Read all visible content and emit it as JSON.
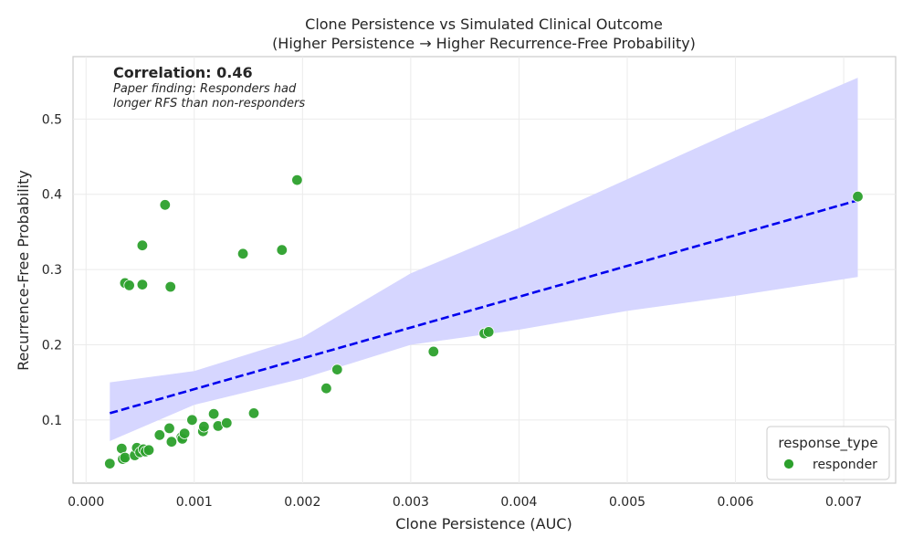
{
  "chart_data": {
    "type": "scatter",
    "title_line1": "Clone Persistence vs Simulated Clinical Outcome",
    "title_line2": "(Higher Persistence → Higher Recurrence-Free Probability)",
    "xlabel": "Clone Persistence (AUC)",
    "ylabel": "Recurrence-Free Probability",
    "xlim": [
      -0.00012,
      0.00748
    ],
    "ylim": [
      0.016,
      0.583
    ],
    "x_ticks": [
      0.0,
      0.001,
      0.002,
      0.003,
      0.004,
      0.005,
      0.006,
      0.007
    ],
    "x_tick_labels": [
      "0.000",
      "0.001",
      "0.002",
      "0.003",
      "0.004",
      "0.005",
      "0.006",
      "0.007"
    ],
    "y_ticks": [
      0.1,
      0.2,
      0.3,
      0.4,
      0.5
    ],
    "y_tick_labels": [
      "0.1",
      "0.2",
      "0.3",
      "0.4",
      "0.5"
    ],
    "grid": true,
    "annotation": {
      "correlation": "Correlation: 0.46",
      "note_line1": "Paper finding: Responders had",
      "note_line2": "longer RFS than non-responders"
    },
    "legend": {
      "title": "response_type",
      "position": "lower-right",
      "entries": [
        {
          "label": "responder",
          "color": "#2ca02c"
        }
      ]
    },
    "colors": {
      "points": "#2ca02c",
      "fit_line": "#0000ee",
      "confidence_band": "#d6d6ff"
    },
    "series": [
      {
        "name": "responder",
        "points": [
          [
            0.00022,
            0.042
          ],
          [
            0.00033,
            0.062
          ],
          [
            0.00034,
            0.048
          ],
          [
            0.00036,
            0.05
          ],
          [
            0.00045,
            0.053
          ],
          [
            0.00047,
            0.063
          ],
          [
            0.0005,
            0.057
          ],
          [
            0.00053,
            0.061
          ],
          [
            0.00055,
            0.058
          ],
          [
            0.00058,
            0.06
          ],
          [
            0.00068,
            0.08
          ],
          [
            0.00077,
            0.089
          ],
          [
            0.00079,
            0.071
          ],
          [
            0.00088,
            0.077
          ],
          [
            0.00089,
            0.075
          ],
          [
            0.00091,
            0.082
          ],
          [
            0.00098,
            0.1
          ],
          [
            0.00108,
            0.085
          ],
          [
            0.00109,
            0.091
          ],
          [
            0.00118,
            0.108
          ],
          [
            0.00122,
            0.092
          ],
          [
            0.0013,
            0.096
          ],
          [
            0.00155,
            0.109
          ],
          [
            0.00036,
            0.282
          ],
          [
            0.0004,
            0.279
          ],
          [
            0.00052,
            0.28
          ],
          [
            0.00052,
            0.332
          ],
          [
            0.00073,
            0.386
          ],
          [
            0.00078,
            0.277
          ],
          [
            0.00145,
            0.321
          ],
          [
            0.00181,
            0.326
          ],
          [
            0.00195,
            0.419
          ],
          [
            0.00222,
            0.142
          ],
          [
            0.00232,
            0.167
          ],
          [
            0.00321,
            0.191
          ],
          [
            0.00368,
            0.215
          ],
          [
            0.00372,
            0.217
          ],
          [
            0.00713,
            0.397
          ]
        ]
      }
    ],
    "fit_line": {
      "x": [
        0.00022,
        0.00713
      ],
      "y": [
        0.109,
        0.392
      ]
    },
    "confidence_band": {
      "x": [
        0.00022,
        0.001,
        0.002,
        0.003,
        0.004,
        0.005,
        0.006,
        0.00713
      ],
      "upper": [
        0.15,
        0.165,
        0.21,
        0.295,
        0.355,
        0.42,
        0.485,
        0.555
      ],
      "lower": [
        0.072,
        0.12,
        0.155,
        0.2,
        0.22,
        0.245,
        0.265,
        0.29
      ]
    }
  }
}
